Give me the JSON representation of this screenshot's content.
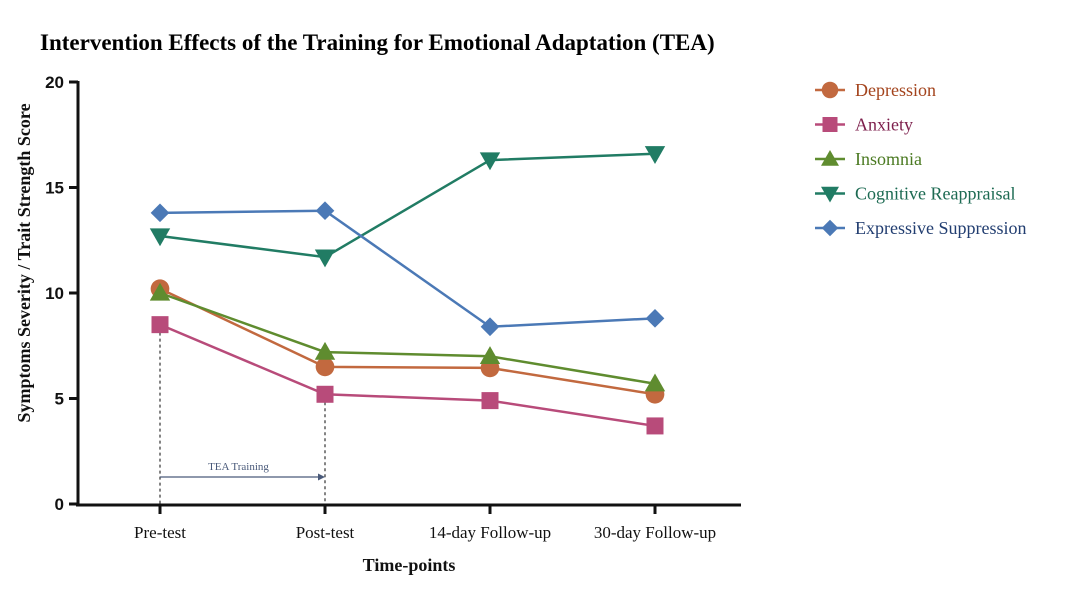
{
  "chart_data": {
    "type": "line",
    "title": "Intervention Effects of the Training for Emotional Adaptation (TEA)",
    "xlabel": "Time-points",
    "ylabel": "Symptoms Severity / Trait Strength Score",
    "categories": [
      "Pre-test",
      "Post-test",
      "14-day Follow-up",
      "30-day Follow-up"
    ],
    "ylim": [
      0,
      20
    ],
    "yticks": [
      0,
      5,
      10,
      15,
      20
    ],
    "grid": false,
    "legend_position": "top-right",
    "series": [
      {
        "name": "Depression",
        "marker": "circle",
        "color": "#c2693f",
        "text_color": "#a3431c",
        "values": [
          10.2,
          6.5,
          6.45,
          5.2
        ]
      },
      {
        "name": "Anxiety",
        "marker": "square",
        "color": "#b84b7a",
        "text_color": "#7d1f4c",
        "values": [
          8.5,
          5.2,
          4.9,
          3.7
        ]
      },
      {
        "name": "Insomnia",
        "marker": "triangle-up",
        "color": "#5f8c2f",
        "text_color": "#4b7a22",
        "values": [
          10.0,
          7.2,
          7.0,
          5.7
        ]
      },
      {
        "name": "Cognitive Reappraisal",
        "marker": "triangle-down",
        "color": "#217c64",
        "text_color": "#1c6a52",
        "values": [
          12.7,
          11.7,
          16.3,
          16.6
        ]
      },
      {
        "name": "Expressive Suppression",
        "marker": "diamond",
        "color": "#4b79b6",
        "text_color": "#213d70",
        "values": [
          13.8,
          13.9,
          8.4,
          8.8
        ]
      }
    ],
    "annotations": [
      {
        "text": "TEA Training",
        "type": "arrow",
        "from_category": "Pre-test",
        "to_category": "Post-test",
        "color": "#4a5a7a"
      }
    ]
  }
}
